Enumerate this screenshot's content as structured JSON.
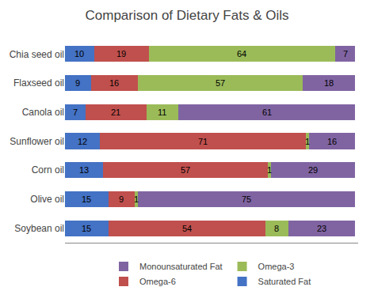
{
  "chart_data": {
    "type": "bar",
    "orientation": "horizontal",
    "stacked": true,
    "title": "Comparison of Dietary Fats & Oils",
    "categories": [
      "Chia seed oil",
      "Flaxseed oil",
      "Canola oil",
      "Sunflower oil",
      "Corn oil",
      "Olive oil",
      "Soybean oil"
    ],
    "series": [
      {
        "name": "Saturated Fat",
        "color": "#4472C4",
        "values": [
          10,
          9,
          7,
          12,
          13,
          15,
          15
        ]
      },
      {
        "name": "Omega-6",
        "color": "#C0504D",
        "values": [
          19,
          16,
          21,
          71,
          57,
          9,
          54
        ]
      },
      {
        "name": "Omega-3",
        "color": "#9BBB59",
        "values": [
          64,
          57,
          11,
          1,
          1,
          1,
          8
        ]
      },
      {
        "name": "Monounsaturated Fat",
        "color": "#8064A2",
        "values": [
          7,
          18,
          61,
          16,
          29,
          75,
          23
        ]
      }
    ],
    "xlim": [
      0,
      101
    ],
    "data_labels": true,
    "tick_labels": "y",
    "legend": "bottom",
    "grid": false
  }
}
